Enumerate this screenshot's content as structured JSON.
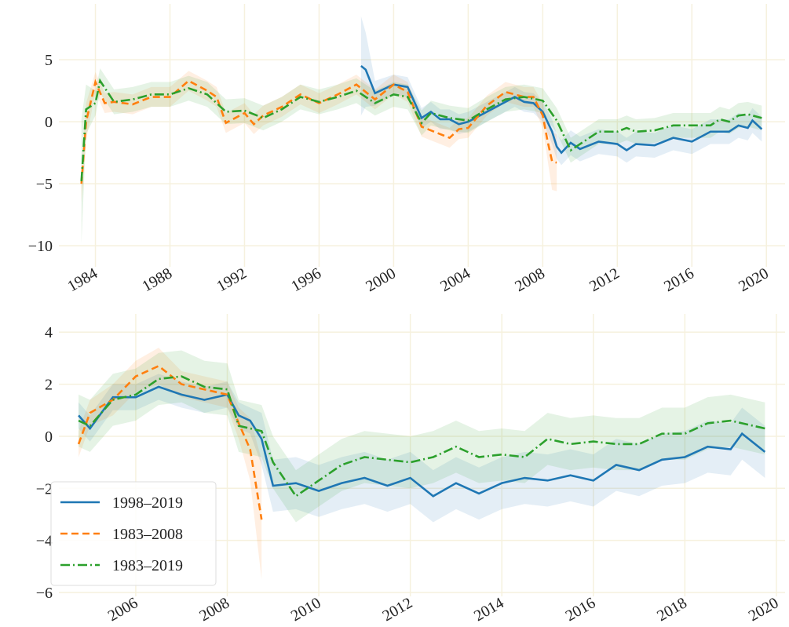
{
  "chart_data": [
    {
      "type": "line",
      "xlim": [
        1982.04,
        2021.0
      ],
      "ylim": [
        -11.7,
        9.5
      ],
      "xticks": [
        1984,
        1988,
        1992,
        1996,
        2000,
        2004,
        2008,
        2012,
        2016,
        2020
      ],
      "yticks": [
        {
          "value": -10,
          "label": "−10"
        },
        {
          "value": -5,
          "label": "−5"
        },
        0,
        5
      ],
      "grid": true,
      "series": [
        {
          "name": "1998–2019",
          "color": "#1f77b4",
          "dash": "solid",
          "x": [
            1998.25,
            1998.5,
            1999,
            2000,
            2000.75,
            2001.5,
            2002,
            2002.5,
            2003,
            2003.5,
            2004,
            2005,
            2006,
            2006.5,
            2007,
            2007.5,
            2008,
            2008.5,
            2008.75,
            2009,
            2009.5,
            2010,
            2011,
            2012,
            2012.5,
            2013,
            2014,
            2015,
            2016,
            2017,
            2018,
            2018.5,
            2019,
            2019.25,
            2019.75
          ],
          "values": [
            4.5,
            4.2,
            2.3,
            3.0,
            2.8,
            0.3,
            0.8,
            0.2,
            0.2,
            -0.2,
            0.0,
            0.8,
            1.6,
            2.0,
            1.6,
            1.5,
            0.8,
            -0.8,
            -2.0,
            -2.5,
            -1.7,
            -2.2,
            -1.6,
            -1.8,
            -2.3,
            -1.8,
            -1.9,
            -1.3,
            -1.6,
            -0.8,
            -0.8,
            -0.3,
            -0.5,
            0.1,
            -0.6
          ],
          "band": [
            4.0,
            3.0,
            1.0,
            0.8,
            0.8,
            0.8,
            0.8,
            0.8,
            0.8,
            0.8,
            0.8,
            0.8,
            0.8,
            0.8,
            0.8,
            0.8,
            0.8,
            1.0,
            1.0,
            1.0,
            1.0,
            1.0,
            1.0,
            1.0,
            1.0,
            1.0,
            1.0,
            1.0,
            1.0,
            1.0,
            1.0,
            1.0,
            1.0,
            1.0,
            1.0
          ]
        },
        {
          "name": "1983–2008",
          "color": "#ff7f0e",
          "dash": "dashed",
          "x": [
            1983.25,
            1983.5,
            1984,
            1984.5,
            1985,
            1986,
            1987,
            1988,
            1989,
            1990,
            1990.5,
            1991,
            1992,
            1992.5,
            1993,
            1994,
            1995,
            1996,
            1997,
            1998,
            1999,
            2000,
            2000.75,
            2001.5,
            2002,
            2003,
            2003.5,
            2004,
            2005,
            2006,
            2007,
            2007.5,
            2008,
            2008.25,
            2008.5,
            2008.75
          ],
          "values": [
            -5,
            0,
            3.2,
            1.5,
            1.6,
            1.4,
            2.0,
            2.0,
            3.3,
            2.5,
            2.0,
            -0.1,
            0.7,
            -0.2,
            0.5,
            1.2,
            2.2,
            1.5,
            2.2,
            3.0,
            1.8,
            3.0,
            2.4,
            -0.4,
            -0.7,
            -1.3,
            -0.6,
            -0.5,
            1.3,
            2.4,
            2.0,
            2.0,
            0.5,
            -1.5,
            -3.2,
            -3.3
          ],
          "band": [
            1.5,
            1.5,
            0.8,
            0.8,
            0.8,
            0.8,
            0.8,
            0.8,
            0.8,
            0.8,
            0.8,
            0.8,
            0.8,
            0.8,
            0.8,
            0.8,
            0.8,
            0.8,
            0.8,
            0.8,
            0.8,
            0.8,
            0.8,
            0.8,
            0.8,
            0.8,
            0.8,
            0.8,
            0.8,
            0.8,
            0.8,
            0.8,
            1.0,
            1.5,
            2.3,
            2.3
          ]
        },
        {
          "name": "1983–2019",
          "color": "#2ca02c",
          "dash": "dashdot",
          "x": [
            1983.25,
            1983.5,
            1984,
            1984.25,
            1985,
            1986,
            1987,
            1988,
            1989,
            1990,
            1991,
            1992,
            1993,
            1994,
            1995,
            1996,
            1997,
            1998,
            1999,
            2000,
            2000.75,
            2001.5,
            2002,
            2003,
            2004,
            2005,
            2006,
            2007,
            2008,
            2008.75,
            2009.5,
            2010,
            2011,
            2012,
            2012.5,
            2013,
            2014,
            2015,
            2016,
            2017,
            2017.5,
            2018,
            2018.5,
            2019,
            2019.75
          ],
          "values": [
            -4.8,
            1.0,
            1.5,
            3.3,
            1.6,
            1.8,
            2.2,
            2.2,
            2.7,
            2.2,
            0.8,
            0.9,
            0.3,
            1.0,
            2.0,
            1.6,
            2.0,
            2.5,
            1.5,
            2.2,
            2.0,
            -0.1,
            0.7,
            0.3,
            0.1,
            1.0,
            1.8,
            2.0,
            1.7,
            0.1,
            -2.3,
            -1.8,
            -0.8,
            -0.8,
            -0.5,
            -0.8,
            -0.7,
            -0.3,
            -0.3,
            -0.3,
            0.2,
            0.0,
            0.5,
            0.6,
            0.3
          ],
          "band": [
            5.0,
            2.0,
            1.0,
            1.0,
            1.0,
            1.0,
            1.0,
            1.0,
            1.0,
            1.0,
            1.0,
            1.0,
            1.0,
            1.0,
            1.0,
            1.0,
            1.0,
            1.0,
            1.0,
            1.0,
            1.0,
            1.0,
            1.0,
            1.0,
            1.0,
            1.0,
            1.0,
            1.0,
            1.0,
            1.0,
            1.0,
            1.0,
            1.0,
            1.0,
            1.0,
            1.0,
            1.0,
            1.0,
            1.0,
            1.0,
            1.0,
            1.0,
            1.0,
            1.0,
            1.0
          ]
        }
      ]
    },
    {
      "type": "line",
      "xlim": [
        2004.32,
        2020.19
      ],
      "ylim": [
        -6.15,
        4.7
      ],
      "xticks": [
        2006,
        2008,
        2010,
        2012,
        2014,
        2016,
        2018,
        2020
      ],
      "yticks": [
        {
          "value": -6,
          "label": "−6"
        },
        {
          "value": -4,
          "label": "−4"
        },
        {
          "value": -2,
          "label": "−2"
        },
        0,
        2,
        4
      ],
      "grid": true,
      "legend": "lower left",
      "series": [
        {
          "name": "1998–2019",
          "color": "#1f77b4",
          "dash": "solid",
          "x": [
            2004.75,
            2005,
            2005.5,
            2006,
            2006.5,
            2007,
            2007.5,
            2008,
            2008.25,
            2008.5,
            2008.75,
            2009,
            2009.5,
            2010,
            2010.5,
            2011,
            2011.5,
            2012,
            2012.5,
            2013,
            2013.5,
            2014,
            2014.5,
            2015,
            2015.5,
            2016,
            2016.5,
            2017,
            2017.5,
            2018,
            2018.5,
            2019,
            2019.25,
            2019.75
          ],
          "values": [
            0.8,
            0.3,
            1.5,
            1.5,
            1.9,
            1.6,
            1.4,
            1.6,
            0.8,
            0.6,
            -0.1,
            -1.9,
            -1.8,
            -2.1,
            -1.8,
            -1.6,
            -1.9,
            -1.6,
            -2.3,
            -1.8,
            -2.2,
            -1.8,
            -1.6,
            -1.7,
            -1.5,
            -1.7,
            -1.1,
            -1.3,
            -0.9,
            -0.8,
            -0.4,
            -0.5,
            0.1,
            -0.6
          ],
          "band": [
            0.5,
            0.5,
            0.5,
            0.5,
            0.5,
            0.5,
            0.5,
            0.5,
            0.5,
            0.5,
            1.0,
            1.0,
            1.0,
            1.0,
            1.0,
            1.0,
            1.0,
            1.0,
            1.0,
            1.0,
            1.0,
            1.0,
            1.0,
            1.0,
            1.0,
            1.0,
            1.0,
            1.0,
            1.0,
            1.0,
            1.0,
            1.0,
            1.0,
            1.0
          ]
        },
        {
          "name": "1983–2008",
          "color": "#ff7f0e",
          "dash": "dashed",
          "x": [
            2004.75,
            2005,
            2005.5,
            2006,
            2006.5,
            2007,
            2007.5,
            2008,
            2008.25,
            2008.5,
            2008.75
          ],
          "values": [
            -0.3,
            0.9,
            1.4,
            2.3,
            2.7,
            2.0,
            1.8,
            1.6,
            0.5,
            -0.5,
            -3.2
          ],
          "band": [
            0.5,
            0.5,
            0.6,
            0.6,
            0.7,
            0.5,
            0.5,
            0.5,
            0.6,
            1.2,
            2.3
          ]
        },
        {
          "name": "1983–2019",
          "color": "#2ca02c",
          "dash": "dashdot",
          "x": [
            2004.75,
            2005,
            2005.5,
            2006,
            2006.5,
            2007,
            2007.5,
            2008,
            2008.25,
            2008.5,
            2008.75,
            2009,
            2009.5,
            2010,
            2010.5,
            2011,
            2011.5,
            2012,
            2012.5,
            2013,
            2013.5,
            2014,
            2014.5,
            2015,
            2015.5,
            2016,
            2016.5,
            2017,
            2017.5,
            2018,
            2018.5,
            2019,
            2019.25,
            2019.75
          ],
          "values": [
            0.6,
            0.4,
            1.4,
            1.6,
            2.2,
            2.3,
            1.9,
            1.8,
            0.4,
            0.3,
            0.2,
            -1.0,
            -2.3,
            -1.7,
            -1.1,
            -0.8,
            -0.9,
            -1.0,
            -0.8,
            -0.4,
            -0.8,
            -0.7,
            -0.8,
            -0.1,
            -0.3,
            -0.2,
            -0.3,
            -0.3,
            0.1,
            0.1,
            0.5,
            0.6,
            0.5,
            0.3
          ],
          "band": [
            1.0,
            1.0,
            1.0,
            1.0,
            1.0,
            1.0,
            1.0,
            1.0,
            1.0,
            1.0,
            1.0,
            1.0,
            1.0,
            1.0,
            1.0,
            1.0,
            1.0,
            1.0,
            1.0,
            1.0,
            1.0,
            1.0,
            1.0,
            1.0,
            1.0,
            1.0,
            1.0,
            1.0,
            1.0,
            1.0,
            1.0,
            1.0,
            1.0,
            1.0
          ]
        }
      ]
    }
  ]
}
